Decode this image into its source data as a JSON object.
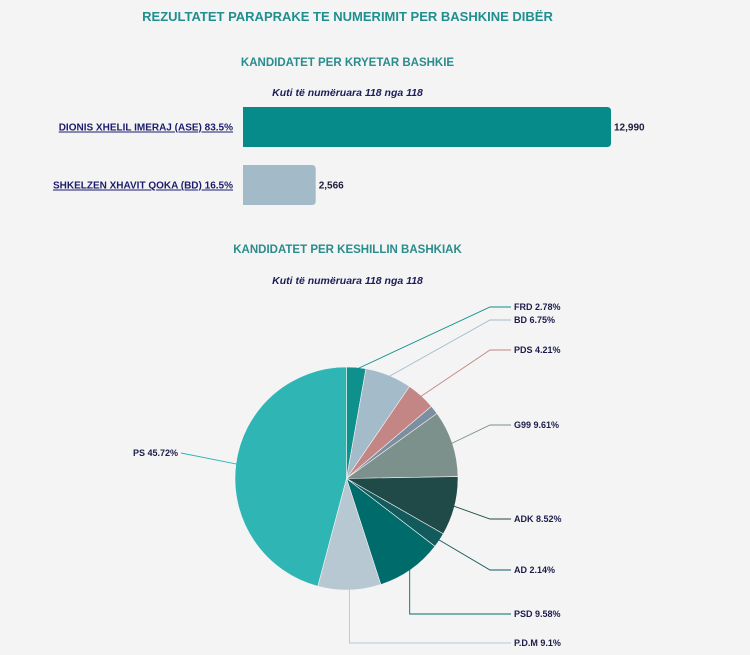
{
  "page": {
    "title": "REZULTATET PARAPRAKE TE NUMERIMIT PER BASHKINE DIBËR"
  },
  "mayor": {
    "title": "KANDIDATET PER KRYETAR BASHKIE",
    "subtitle": "Kuti të numëruara 118 nga 118"
  },
  "council": {
    "title": "KANDIDATET PER KESHILLIN BASHKIAK",
    "subtitle": "Kuti të numëruara 118 nga 118"
  },
  "chart_data": [
    {
      "type": "bar",
      "orientation": "horizontal",
      "title": "KANDIDATET PER KRYETAR BASHKIE",
      "subtitle": "Kuti të numëruara 118 nga 118",
      "categories": [
        "DIONIS XHELIL IMERAJ (ASE) 83.5%",
        "SHKELZEN XHAVIT QOKA (BD) 16.5%"
      ],
      "values": [
        12990,
        2566
      ],
      "value_labels": [
        "12,990",
        "2,566"
      ],
      "colors": [
        "#068a8a",
        "#a3bac8"
      ],
      "xlim": [
        0,
        13200
      ]
    },
    {
      "type": "pie",
      "title": "KANDIDATET PER KESHILLIN BASHKIAK",
      "subtitle": "Kuti të numëruara 118 nga 118",
      "slices": [
        {
          "label": "FRD 2.78%",
          "value": 2.78,
          "color": "#0e918c"
        },
        {
          "label": "BD 6.75%",
          "value": 6.75,
          "color": "#a4bcca"
        },
        {
          "label": "PDS 4.21%",
          "value": 4.21,
          "color": "#c48585"
        },
        {
          "label": "",
          "value": 1.3,
          "color": "#7c8fa0"
        },
        {
          "label": "G99 9.61%",
          "value": 9.61,
          "color": "#7c908c"
        },
        {
          "label": "ADK 8.52%",
          "value": 8.52,
          "color": "#1f4a48"
        },
        {
          "label": "AD 2.14%",
          "value": 2.14,
          "color": "#125a5c"
        },
        {
          "label": "PSD 9.58%",
          "value": 9.58,
          "color": "#006b6b"
        },
        {
          "label": "P.D.M 9.1%",
          "value": 9.1,
          "color": "#b7c8d2"
        },
        {
          "label": "PS 45.72%",
          "value": 45.72,
          "color": "#30b5b5"
        }
      ]
    }
  ]
}
